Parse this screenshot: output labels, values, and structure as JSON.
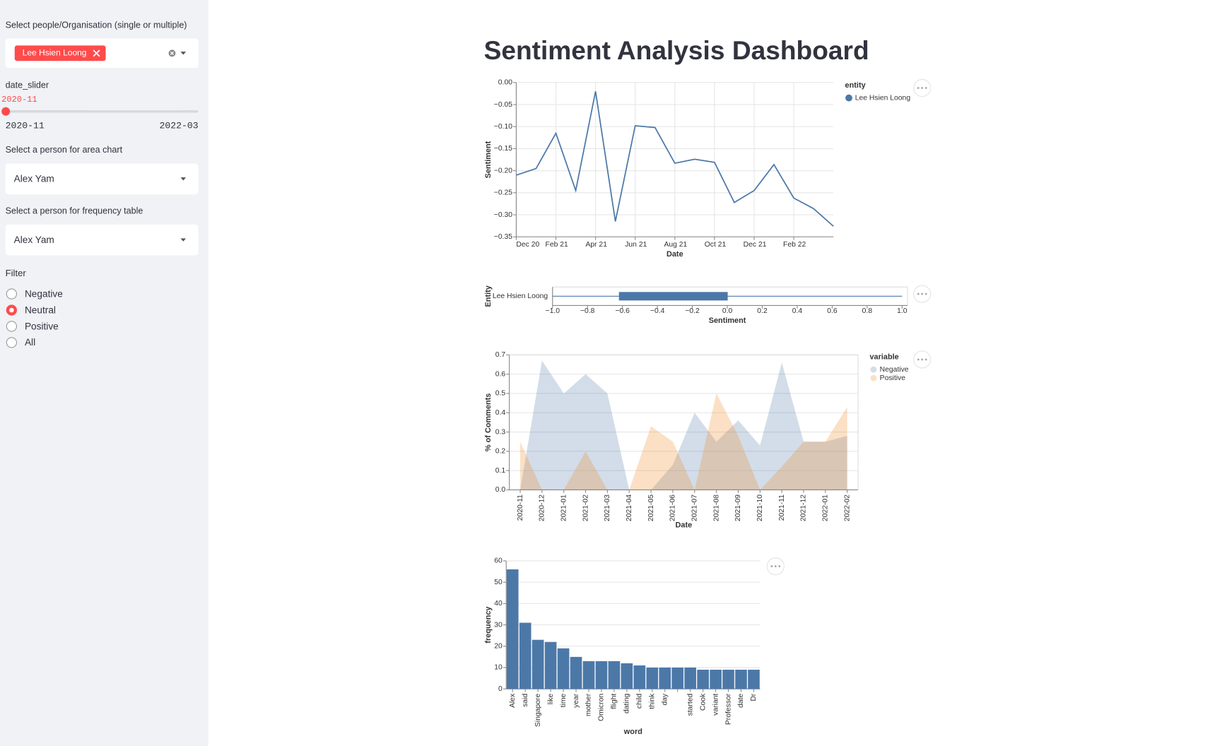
{
  "title": "Sentiment Analysis Dashboard",
  "sidebar": {
    "people_label": "Select people/Organisation (single or multiple)",
    "people_selected": "Lee Hsien Loong",
    "date_label": "date_slider",
    "date_value": "2020-11",
    "date_min": "2020-11",
    "date_max": "2022-03",
    "area_label": "Select a person for area chart",
    "area_value": "Alex Yam",
    "freq_label": "Select a person for frequency table",
    "freq_value": "Alex Yam",
    "filter_label": "Filter",
    "filter_options": [
      "Negative",
      "Neutral",
      "Positive",
      "All"
    ],
    "filter_selected": "Neutral"
  },
  "chart_data": [
    {
      "type": "line",
      "x_label": "Date",
      "y_label": "Sentiment",
      "legend_title": "entity",
      "grid": true,
      "x": [
        "2020-12",
        "2021-01",
        "2021-02",
        "2021-03",
        "2021-04",
        "2021-05",
        "2021-06",
        "2021-07",
        "2021-08",
        "2021-09",
        "2021-10",
        "2021-11",
        "2021-12",
        "2022-01",
        "2022-02",
        "2022-03",
        "2022-04"
      ],
      "series": [
        {
          "name": "Lee Hsien Loong",
          "color": "#4c78a8",
          "values": [
            -0.21,
            -0.195,
            -0.115,
            -0.245,
            -0.02,
            -0.315,
            -0.098,
            -0.102,
            -0.183,
            -0.174,
            -0.181,
            -0.272,
            -0.245,
            -0.186,
            -0.262,
            -0.286,
            -0.326
          ]
        }
      ],
      "xlim": [
        "2020-12",
        "2022-04"
      ],
      "xticks": [
        {
          "value": "2020-12",
          "label": "Dec 20"
        },
        {
          "value": "2021-02",
          "label": "Feb 21"
        },
        {
          "value": "2021-04",
          "label": "Apr 21"
        },
        {
          "value": "2021-06",
          "label": "Jun 21"
        },
        {
          "value": "2021-08",
          "label": "Aug 21"
        },
        {
          "value": "2021-10",
          "label": "Oct 21"
        },
        {
          "value": "2021-12",
          "label": "Dec 21"
        },
        {
          "value": "2022-02",
          "label": "Feb 22"
        }
      ],
      "ylim": [
        -0.35,
        0
      ],
      "yticks": [
        {
          "value": 0,
          "label": "0.00"
        },
        {
          "value": -0.05,
          "label": "−0.05"
        },
        {
          "value": -0.1,
          "label": "−0.10"
        },
        {
          "value": -0.15,
          "label": "−0.15"
        },
        {
          "value": -0.2,
          "label": "−0.20"
        },
        {
          "value": -0.25,
          "label": "−0.25"
        },
        {
          "value": -0.3,
          "label": "−0.30"
        },
        {
          "value": -0.35,
          "label": "−0.35"
        }
      ]
    },
    {
      "type": "boxplot",
      "x_label": "Sentiment",
      "y_label": "Entity",
      "color": "#4c78a8",
      "categories": [
        "Lee Hsien Loong"
      ],
      "boxes": [
        {
          "min": -1.0,
          "q1": -0.62,
          "median": 0.0,
          "q3": 0.0,
          "max": 1.0
        }
      ],
      "xlim": [
        -1,
        1
      ],
      "xticks": [
        {
          "value": -1,
          "label": "−1.0"
        },
        {
          "value": -0.8,
          "label": "−0.8"
        },
        {
          "value": -0.6,
          "label": "−0.6"
        },
        {
          "value": -0.4,
          "label": "−0.4"
        },
        {
          "value": -0.2,
          "label": "−0.2"
        },
        {
          "value": 0,
          "label": "0.0"
        },
        0.2,
        0.4,
        0.6,
        0.8,
        {
          "value": 1,
          "label": "1.0"
        }
      ]
    },
    {
      "type": "area",
      "x_label": "Date",
      "y_label": "% of Comments",
      "legend_title": "variable",
      "grid": true,
      "opacity": 0.25,
      "categories": [
        "2020-11",
        "2020-12",
        "2021-01",
        "2021-02",
        "2021-03",
        "2021-04",
        "2021-05",
        "2021-06",
        "2021-07",
        "2021-08",
        "2021-09",
        "2021-10",
        "2021-11",
        "2021-12",
        "2022-01",
        "2022-02"
      ],
      "series": [
        {
          "name": "Negative",
          "color": "#4c78a8",
          "values": [
            0,
            0.67,
            0.5,
            0.6,
            0.5,
            0,
            0,
            0.13,
            0.4,
            0.25,
            0.36,
            0.23,
            0.66,
            0.25,
            0.25,
            0.28
          ]
        },
        {
          "name": "Positive",
          "color": "#f58518",
          "values": [
            0.25,
            0,
            0,
            0.2,
            0,
            0,
            0.33,
            0.25,
            0,
            0.5,
            0.28,
            0,
            0.12,
            0.25,
            0.25,
            0.43
          ]
        }
      ],
      "ylim": [
        0,
        0.7
      ],
      "yticks": [
        {
          "value": 0,
          "label": "0.0"
        },
        0.1,
        0.2,
        0.3,
        0.4,
        0.5,
        0.6,
        0.7
      ]
    },
    {
      "type": "bar",
      "x_label": "word",
      "y_label": "frequency",
      "color": "#4c78a8",
      "grid": true,
      "categories": [
        "Alex",
        "said",
        "Singapore",
        "like",
        "time",
        "year",
        "mother",
        "Omicron",
        "flight",
        "dating",
        "child",
        "think",
        "day",
        null,
        "started",
        "Cook",
        "variant",
        "Professor",
        "date",
        "Dr"
      ],
      "values": [
        56,
        31,
        23,
        22,
        19,
        15,
        13,
        13,
        13,
        12,
        11,
        10,
        10,
        10,
        10,
        9,
        9,
        9,
        9,
        9
      ],
      "ylim": [
        0,
        60
      ],
      "yticks": [
        0,
        10,
        20,
        30,
        40,
        50,
        60
      ]
    }
  ]
}
